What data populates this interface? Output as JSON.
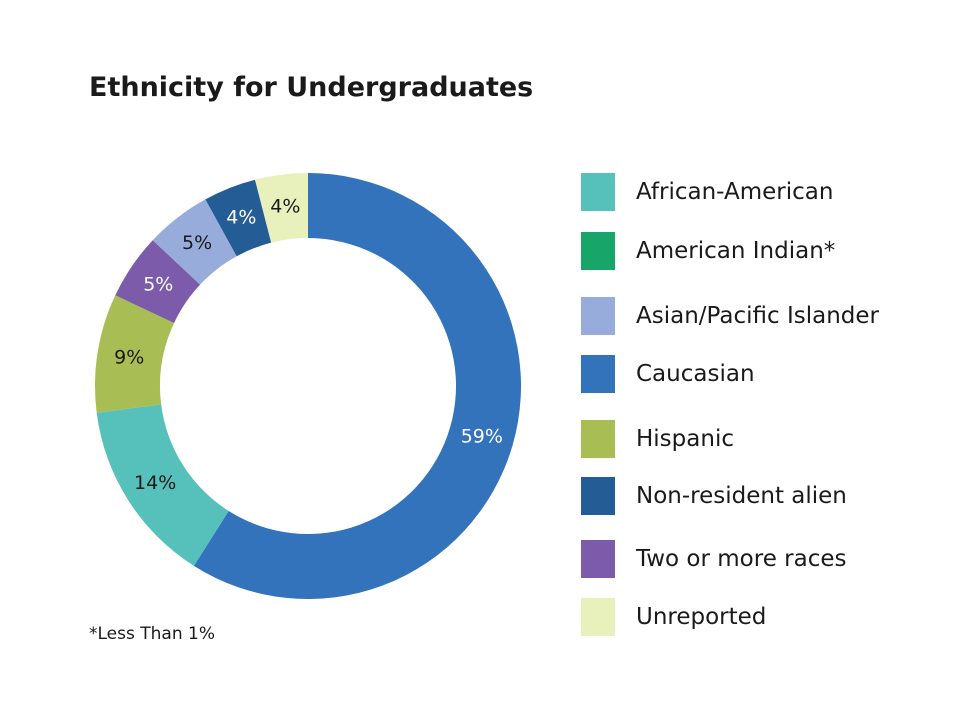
{
  "chart_data": {
    "type": "pie",
    "title": "Ethnicity for Undergraduates",
    "slices": [
      {
        "label": "Caucasian",
        "value": 59,
        "display": "59%",
        "color": "#3373BC",
        "text_color": "#ffffff"
      },
      {
        "label": "African-American",
        "value": 14,
        "display": "14%",
        "color": "#56C1BA",
        "text_color": "#1a1a1a"
      },
      {
        "label": "Hispanic",
        "value": 9,
        "display": "9%",
        "color": "#A8BD53",
        "text_color": "#1a1a1a"
      },
      {
        "label": "Two or more races",
        "value": 5,
        "display": "5%",
        "color": "#7B5BAA",
        "text_color": "#ffffff"
      },
      {
        "label": "Asian/Pacific Islander",
        "value": 5,
        "display": "5%",
        "color": "#98ACDC",
        "text_color": "#1a1a1a"
      },
      {
        "label": "Non-resident alien",
        "value": 4,
        "display": "4%",
        "color": "#245C95",
        "text_color": "#ffffff"
      },
      {
        "label": "Unreported",
        "value": 4,
        "display": "4%",
        "color": "#E8F0BC",
        "text_color": "#1a1a1a"
      }
    ],
    "legend": [
      {
        "label": "African-American",
        "color": "#56C1BA"
      },
      {
        "label": "American Indian*",
        "color": "#17A56A"
      },
      {
        "label": "Asian/Pacific Islander",
        "color": "#98ACDC"
      },
      {
        "label": "Caucasian",
        "color": "#3373BC"
      },
      {
        "label": "Hispanic",
        "color": "#A8BD53"
      },
      {
        "label": "Non-resident alien",
        "color": "#245C95"
      },
      {
        "label": "Two or more races",
        "color": "#7B5BAA"
      },
      {
        "label": "Unreported",
        "color": "#E8F0BC"
      }
    ],
    "legend_position": "right",
    "footnote": "*Less Than 1%"
  }
}
